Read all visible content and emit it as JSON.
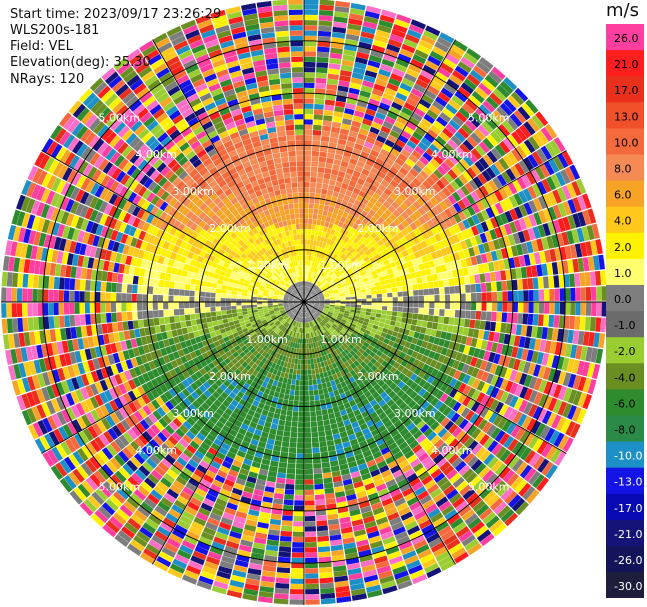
{
  "header": {
    "start_time": "Start time: 2023/09/17 23:26:29",
    "site": "WLS200s-181",
    "field": "Field: VEL",
    "elevation": "Elevation(deg): 35.30",
    "nrays": "NRays: 120"
  },
  "colorbar": {
    "unit": "m/s",
    "bins": [
      {
        "label": "26.0",
        "color": "#ff3fa0"
      },
      {
        "label": "21.0",
        "color": "#ff1e1e"
      },
      {
        "label": "17.0",
        "color": "#e8301c"
      },
      {
        "label": "13.0",
        "color": "#f0502a"
      },
      {
        "label": "10.0",
        "color": "#f46a3c"
      },
      {
        "label": "8.0",
        "color": "#f58a55"
      },
      {
        "label": "6.0",
        "color": "#f7a326"
      },
      {
        "label": "4.0",
        "color": "#ffc81a"
      },
      {
        "label": "2.0",
        "color": "#fff200"
      },
      {
        "label": "1.0",
        "color": "#ffff70"
      },
      {
        "label": "0.0",
        "color": "#7d7d7d"
      },
      {
        "label": "-1.0",
        "color": "#6b6b6b"
      },
      {
        "label": "-2.0",
        "color": "#9acd32"
      },
      {
        "label": "-4.0",
        "color": "#6b8e23"
      },
      {
        "label": "-6.0",
        "color": "#2e8b2e"
      },
      {
        "label": "-8.0",
        "color": "#2a8a48"
      },
      {
        "label": "-10.0",
        "color": "#1e90c8"
      },
      {
        "label": "-13.0",
        "color": "#1414e6"
      },
      {
        "label": "-17.0",
        "color": "#0a0ab4"
      },
      {
        "label": "-21.0",
        "color": "#141478"
      },
      {
        "label": "-26.0",
        "color": "#14145a"
      },
      {
        "label": "-30.0",
        "color": "#1e1e3c"
      }
    ]
  },
  "chart_data": {
    "type": "heatmap",
    "subtype": "radar-ppi",
    "field": "VEL",
    "units": "m/s",
    "nrays": 120,
    "range_rings_km": [
      1.0,
      2.0,
      3.0,
      4.0,
      5.0
    ],
    "ring_labels": [
      "1.00km",
      "2.00km",
      "3.00km",
      "4.00km",
      "5.00km"
    ],
    "max_range_km": 5.8,
    "spokes_deg": [
      0,
      30,
      60,
      90,
      120,
      150,
      180,
      210,
      240,
      270,
      300,
      330
    ],
    "pattern": "near range (up to ~3 km): north half positive (yellow 1-2 m/s near center, orange 6-10 m/s further out), south half negative (olive/green -2 to -8 m/s), gray 0 m/s along east-west; beyond ~3-3.5 km random multicolor noise across all bins",
    "clean_range_km": 3.1
  }
}
